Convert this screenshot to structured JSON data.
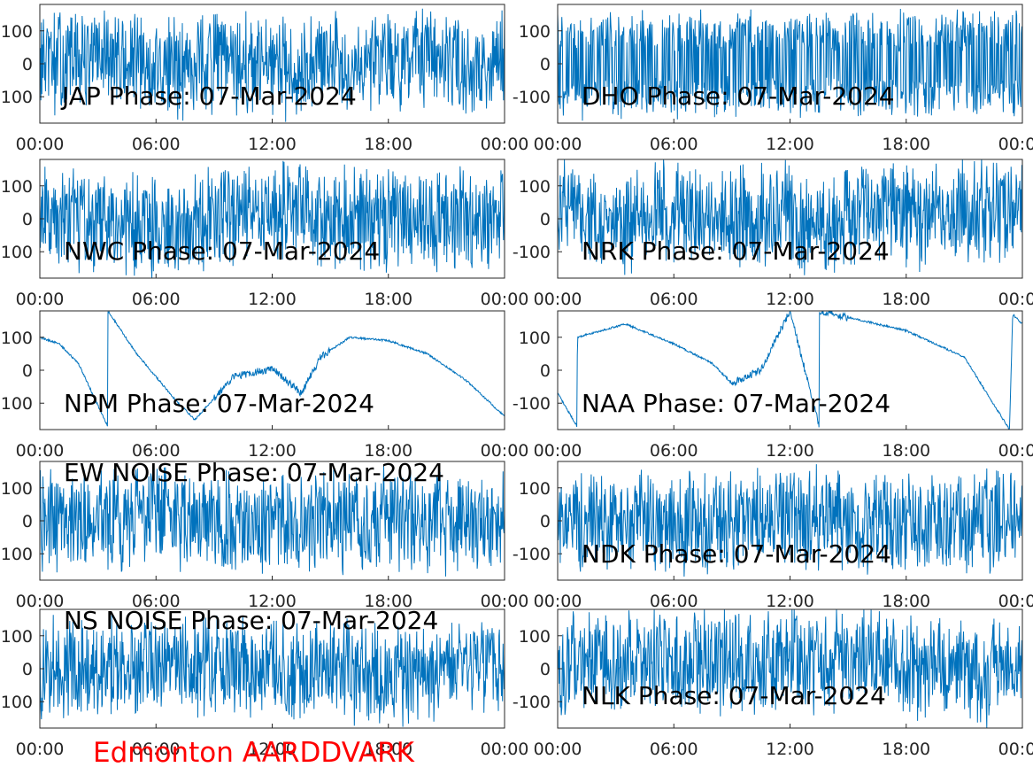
{
  "figure": {
    "footer": "Edmonton AARDDVARK",
    "footer_color": "#ff0000",
    "line_color": "#0072bd"
  },
  "chart_data": [
    {
      "type": "line",
      "title": "JAP Phase: 07-Mar-2024",
      "x_ticks": [
        "00:00",
        "06:00",
        "12:00",
        "18:00",
        "00:00"
      ],
      "y_ticks": [
        "100",
        "0",
        "100"
      ],
      "xlim": [
        "00:00",
        "24:00"
      ],
      "ylim": [
        -180,
        180
      ],
      "grid": false,
      "pattern": "wrapped phase, dense rapid wrapping throughout the day",
      "x": [
        "00:00",
        "03:00",
        "06:00",
        "09:00",
        "12:00",
        "15:00",
        "18:00",
        "21:00",
        "24:00"
      ],
      "y": [
        0,
        120,
        -100,
        80,
        -150,
        40,
        160,
        -60,
        20
      ]
    },
    {
      "type": "line",
      "title": "DHO Phase: 07-Mar-2024",
      "x_ticks": [
        "00:00",
        "06:00",
        "12:00",
        "18:00",
        "00:00"
      ],
      "y_ticks": [
        "100",
        "0",
        "-100"
      ],
      "xlim": [
        "00:00",
        "24:00"
      ],
      "ylim": [
        -180,
        180
      ],
      "grid": false,
      "pattern": "regular periodic wrapping, near-uniform vertical bands",
      "x": [
        "00:00",
        "06:00",
        "12:00",
        "18:00",
        "24:00"
      ],
      "y": [
        -150,
        150,
        -150,
        150,
        -150
      ]
    },
    {
      "type": "line",
      "title": "NWC Phase: 07-Mar-2024",
      "x_ticks": [
        "00:00",
        "06:00",
        "12:00",
        "18:00",
        "00:00"
      ],
      "y_ticks": [
        "100",
        "0",
        "100"
      ],
      "xlim": [
        "00:00",
        "24:00"
      ],
      "ylim": [
        -180,
        180
      ],
      "grid": false,
      "pattern": "noisy wrapped phase, dense throughout",
      "x": [
        "00:00",
        "06:00",
        "12:00",
        "18:00",
        "24:00"
      ],
      "y": [
        50,
        -120,
        140,
        -30,
        90
      ]
    },
    {
      "type": "line",
      "title": "NRK Phase: 07-Mar-2024",
      "x_ticks": [
        "00:00",
        "06:00",
        "12:00",
        "18:00",
        "00:00"
      ],
      "y_ticks": [
        "100",
        "0",
        "-100"
      ],
      "xlim": [
        "00:00",
        "24:00"
      ],
      "ylim": [
        -180,
        180
      ],
      "grid": false,
      "pattern": "slow downward drift with wraps, denser late in the day",
      "x": [
        "00:30",
        "02:30",
        "05:00",
        "07:00",
        "09:00",
        "11:00",
        "13:30",
        "16:00",
        "19:00",
        "21:30",
        "23:30"
      ],
      "y": [
        150,
        -140,
        170,
        130,
        20,
        150,
        -170,
        150,
        20,
        170,
        140
      ]
    },
    {
      "type": "line",
      "title": "NPM Phase: 07-Mar-2024",
      "x_ticks": [
        "00:00",
        "06:00",
        "12:00",
        "18:00",
        "00:00"
      ],
      "y_ticks": [
        "100",
        "0",
        "100"
      ],
      "xlim": [
        "00:00",
        "24:00"
      ],
      "ylim": [
        -180,
        180
      ],
      "grid": false,
      "pattern": "smooth slowly varying phase with one wrap near 03:30",
      "x": [
        "00:00",
        "01:00",
        "02:00",
        "03:30",
        "03:31",
        "05:00",
        "07:00",
        "08:00",
        "10:00",
        "12:00",
        "13:30",
        "14:30",
        "16:00",
        "18:00",
        "20:00",
        "22:00",
        "24:00"
      ],
      "y": [
        100,
        80,
        20,
        -170,
        180,
        50,
        -90,
        -150,
        -20,
        5,
        -70,
        40,
        100,
        90,
        50,
        -30,
        -140
      ]
    },
    {
      "type": "line",
      "title": "NAA Phase: 07-Mar-2024",
      "x_ticks": [
        "00:00",
        "06:00",
        "12:00",
        "18:00",
        "00:00"
      ],
      "y_ticks": [
        "100",
        "0",
        "-100"
      ],
      "xlim": [
        "00:00",
        "24:00"
      ],
      "ylim": [
        -180,
        180
      ],
      "grid": false,
      "pattern": "slowly varying phase with wraps near 01:00, 12:00, 13:30 and 23:30",
      "x": [
        "00:00",
        "01:00",
        "01:01",
        "03:30",
        "06:00",
        "08:00",
        "09:00",
        "10:30",
        "12:00",
        "13:30",
        "13:31",
        "18:00",
        "21:00",
        "23:20",
        "23:30",
        "24:00"
      ],
      "y": [
        -70,
        -170,
        100,
        140,
        80,
        20,
        -40,
        0,
        180,
        -170,
        180,
        120,
        40,
        -180,
        170,
        140
      ]
    },
    {
      "type": "line",
      "title": "EW NOISE Phase: 07-Mar-2024",
      "x_ticks": [
        "00:00",
        "06:00",
        "12:00",
        "18:00",
        "00:00"
      ],
      "y_ticks": [
        "100",
        "0",
        "100"
      ],
      "xlim": [
        "00:00",
        "24:00"
      ],
      "ylim": [
        -180,
        180
      ],
      "grid": false,
      "pattern": "random noise phase, dense",
      "x": [
        "00:00",
        "06:00",
        "12:00",
        "18:00",
        "24:00"
      ],
      "y": [
        0,
        100,
        -80,
        60,
        -20
      ]
    },
    {
      "type": "line",
      "title": "NDK Phase: 07-Mar-2024",
      "x_ticks": [
        "00:00",
        "06:00",
        "12:00",
        "18:00",
        "00:00"
      ],
      "y_ticks": [
        "100",
        "0",
        "-100"
      ],
      "xlim": [
        "00:00",
        "24:00"
      ],
      "ylim": [
        -180,
        180
      ],
      "grid": false,
      "pattern": "dense wrapped phase throughout",
      "x": [
        "00:00",
        "06:00",
        "12:00",
        "18:00",
        "24:00"
      ],
      "y": [
        80,
        -60,
        120,
        -140,
        40
      ]
    },
    {
      "type": "line",
      "title": "NS NOISE Phase: 07-Mar-2024",
      "x_ticks": [
        "00:00",
        "06:00",
        "12:00",
        "18:00",
        "00:00"
      ],
      "y_ticks": [
        "100",
        "0",
        "100"
      ],
      "xlim": [
        "00:00",
        "24:00"
      ],
      "ylim": [
        -180,
        180
      ],
      "grid": false,
      "pattern": "random noise phase, dense",
      "x": [
        "00:00",
        "06:00",
        "12:00",
        "18:00",
        "24:00"
      ],
      "y": [
        -40,
        120,
        10,
        -100,
        60
      ]
    },
    {
      "type": "line",
      "title": "NLK Phase: 07-Mar-2024",
      "x_ticks": [
        "00:00",
        "06:00",
        "12:00",
        "18:00",
        "00:00"
      ],
      "y_ticks": [
        "100",
        "0",
        "-100"
      ],
      "xlim": [
        "00:00",
        "24:00"
      ],
      "ylim": [
        -180,
        180
      ],
      "grid": false,
      "pattern": "sawtooth wrapping with roughly 1-hour period, noisy 16:00-20:00",
      "x": [
        "00:00",
        "01:00",
        "02:00",
        "03:00",
        "04:00",
        "05:00",
        "06:00",
        "07:00",
        "08:00",
        "09:00",
        "10:00",
        "11:00",
        "12:00",
        "13:00",
        "14:00",
        "15:00",
        "16:00",
        "18:00",
        "20:00",
        "22:00",
        "24:00"
      ],
      "y": [
        -100,
        180,
        170,
        160,
        170,
        180,
        170,
        160,
        170,
        180,
        170,
        160,
        170,
        180,
        170,
        160,
        170,
        0,
        60,
        -140,
        180
      ]
    }
  ]
}
